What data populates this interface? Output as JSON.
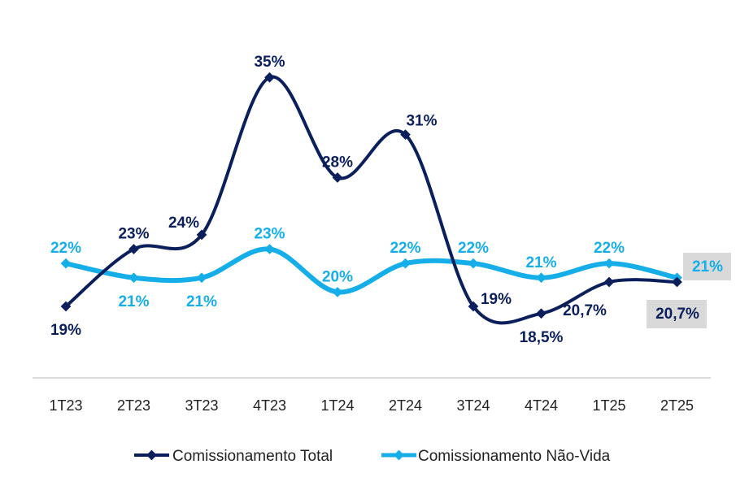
{
  "chart_data": {
    "type": "line",
    "categories": [
      "1T23",
      "2T23",
      "3T23",
      "4T23",
      "1T24",
      "2T24",
      "3T24",
      "4T24",
      "1T25",
      "2T25"
    ],
    "ylim": [
      14,
      37
    ],
    "grid": false,
    "legend_position": "bottom",
    "series": [
      {
        "name": "Comissionamento Total",
        "color": "#0b1f5c",
        "values": [
          19,
          23,
          24,
          35,
          28,
          31,
          19,
          18.5,
          20.7,
          20.7
        ],
        "labels": [
          "19%",
          "23%",
          "24%",
          "35%",
          "28%",
          "31%",
          "19%",
          "18,5%",
          "20,7%",
          "20,7%"
        ],
        "label_positions": [
          "below",
          "above",
          "above-left",
          "above",
          "above",
          "above-right",
          "right",
          "below",
          "below-left",
          "below-right-boxed"
        ]
      },
      {
        "name": "Comissionamento Não-Vida",
        "color": "#16aee8",
        "values": [
          22,
          21,
          21,
          23,
          20,
          22,
          22,
          21,
          22,
          21
        ],
        "labels": [
          "22%",
          "21%",
          "21%",
          "23%",
          "20%",
          "22%",
          "22%",
          "21%",
          "22%",
          "21%"
        ],
        "label_positions": [
          "above",
          "below",
          "below",
          "above",
          "above",
          "above",
          "above",
          "above",
          "above",
          "above-right-boxed"
        ]
      }
    ],
    "highlight_box_color": "#d9d9d9"
  }
}
